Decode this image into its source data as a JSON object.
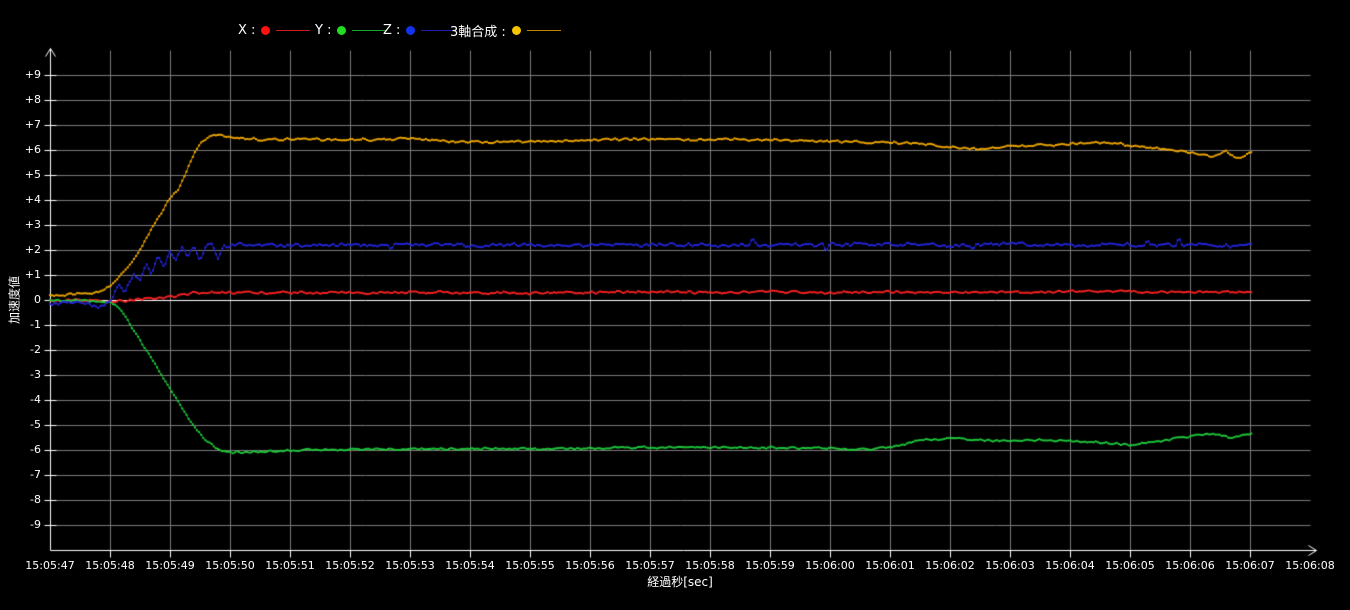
{
  "page": {
    "background": "#000000",
    "text_color": "#ffffff"
  },
  "chart_data": {
    "type": "line",
    "title": "",
    "xlabel": "経過秒[sec]",
    "ylabel": "加速度値",
    "legend_position": "top",
    "grid": {
      "enabled": true,
      "line_color": "#7b7b7b",
      "zero_line_color": "#ffffff",
      "axis_color": "#ffffff"
    },
    "ylim": [
      -10,
      10
    ],
    "x_axis_range_sec": [
      47,
      68
    ],
    "data_t_range_sec": [
      47.0,
      67.05
    ],
    "sample_interval_sec": 0.035,
    "y_ticks": [
      {
        "v": 9,
        "label": "+9"
      },
      {
        "v": 8,
        "label": "+8"
      },
      {
        "v": 7,
        "label": "+7"
      },
      {
        "v": 6,
        "label": "+6"
      },
      {
        "v": 5,
        "label": "+5"
      },
      {
        "v": 4,
        "label": "+4"
      },
      {
        "v": 3,
        "label": "+3"
      },
      {
        "v": 2,
        "label": "+2"
      },
      {
        "v": 1,
        "label": "+1"
      },
      {
        "v": 0,
        "label": "0"
      },
      {
        "v": -1,
        "label": "-1"
      },
      {
        "v": -2,
        "label": "-2"
      },
      {
        "v": -3,
        "label": "-3"
      },
      {
        "v": -4,
        "label": "-4"
      },
      {
        "v": -5,
        "label": "-5"
      },
      {
        "v": -6,
        "label": "-6"
      },
      {
        "v": -7,
        "label": "-7"
      },
      {
        "v": -8,
        "label": "-8"
      },
      {
        "v": -9,
        "label": "-9"
      }
    ],
    "x_ticks": [
      {
        "sec": 47,
        "label": "15:05:47"
      },
      {
        "sec": 48,
        "label": "15:05:48"
      },
      {
        "sec": 49,
        "label": "15:05:49"
      },
      {
        "sec": 50,
        "label": "15:05:50"
      },
      {
        "sec": 51,
        "label": "15:05:51"
      },
      {
        "sec": 52,
        "label": "15:05:52"
      },
      {
        "sec": 53,
        "label": "15:05:53"
      },
      {
        "sec": 54,
        "label": "15:05:54"
      },
      {
        "sec": 55,
        "label": "15:05:55"
      },
      {
        "sec": 56,
        "label": "15:05:56"
      },
      {
        "sec": 57,
        "label": "15:05:57"
      },
      {
        "sec": 58,
        "label": "15:05:58"
      },
      {
        "sec": 59,
        "label": "15:05:59"
      },
      {
        "sec": 60,
        "label": "15:06:00"
      },
      {
        "sec": 61,
        "label": "15:06:01"
      },
      {
        "sec": 62,
        "label": "15:06:02"
      },
      {
        "sec": 63,
        "label": "15:06:03"
      },
      {
        "sec": 64,
        "label": "15:06:04"
      },
      {
        "sec": 65,
        "label": "15:06:05"
      },
      {
        "sec": 66,
        "label": "15:06:06"
      },
      {
        "sec": 67,
        "label": "15:06:07"
      },
      {
        "sec": 68,
        "label": "15:06:08"
      }
    ],
    "series": [
      {
        "name": "X",
        "legend_label": "X :",
        "color": "#ff2222",
        "marker_color": "#ff1111",
        "noise": 0.06,
        "spike_prob": 0,
        "spike_amp": 0,
        "keypoints": [
          [
            47.0,
            -0.05
          ],
          [
            47.5,
            -0.02
          ],
          [
            48.0,
            -0.05
          ],
          [
            48.3,
            -0.02
          ],
          [
            48.6,
            0.05
          ],
          [
            48.9,
            0.1
          ],
          [
            49.2,
            0.22
          ],
          [
            49.5,
            0.3
          ],
          [
            50.0,
            0.28
          ],
          [
            51.0,
            0.3
          ],
          [
            52.0,
            0.28
          ],
          [
            53.0,
            0.3
          ],
          [
            54.0,
            0.3
          ],
          [
            55.0,
            0.28
          ],
          [
            56.0,
            0.3
          ],
          [
            57.0,
            0.32
          ],
          [
            58.0,
            0.3
          ],
          [
            59.0,
            0.33
          ],
          [
            60.0,
            0.3
          ],
          [
            61.0,
            0.32
          ],
          [
            62.0,
            0.3
          ],
          [
            63.0,
            0.3
          ],
          [
            64.0,
            0.33
          ],
          [
            65.0,
            0.35
          ],
          [
            65.7,
            0.3
          ],
          [
            66.3,
            0.33
          ],
          [
            67.05,
            0.3
          ]
        ]
      },
      {
        "name": "Y",
        "legend_label": "Y :",
        "color": "#1ecb3c",
        "marker_color": "#22dd22",
        "noise": 0.05,
        "spike_prob": 0,
        "spike_amp": 0,
        "keypoints": [
          [
            47.0,
            0.0
          ],
          [
            47.6,
            -0.02
          ],
          [
            48.0,
            -0.08
          ],
          [
            48.15,
            -0.3
          ],
          [
            48.3,
            -0.85
          ],
          [
            48.45,
            -1.4
          ],
          [
            48.6,
            -2.0
          ],
          [
            48.8,
            -2.75
          ],
          [
            49.0,
            -3.55
          ],
          [
            49.15,
            -4.15
          ],
          [
            49.3,
            -4.7
          ],
          [
            49.45,
            -5.2
          ],
          [
            49.6,
            -5.6
          ],
          [
            49.75,
            -5.9
          ],
          [
            49.9,
            -6.07
          ],
          [
            50.15,
            -6.1
          ],
          [
            50.6,
            -6.05
          ],
          [
            51.3,
            -6.0
          ],
          [
            52.5,
            -5.97
          ],
          [
            54.0,
            -5.95
          ],
          [
            55.5,
            -5.95
          ],
          [
            57.0,
            -5.9
          ],
          [
            58.5,
            -5.9
          ],
          [
            59.8,
            -5.92
          ],
          [
            60.7,
            -5.98
          ],
          [
            61.1,
            -5.85
          ],
          [
            61.5,
            -5.6
          ],
          [
            62.1,
            -5.55
          ],
          [
            62.7,
            -5.62
          ],
          [
            63.3,
            -5.6
          ],
          [
            63.9,
            -5.62
          ],
          [
            64.5,
            -5.7
          ],
          [
            65.0,
            -5.8
          ],
          [
            65.5,
            -5.65
          ],
          [
            66.0,
            -5.45
          ],
          [
            66.4,
            -5.35
          ],
          [
            66.7,
            -5.5
          ],
          [
            66.9,
            -5.4
          ],
          [
            67.05,
            -5.3
          ]
        ]
      },
      {
        "name": "Z",
        "legend_label": "Z :",
        "color": "#2525e0",
        "marker_color": "#1133ee",
        "noise": 0.09,
        "spike_prob": 0.03,
        "spike_amp": 0.4,
        "keypoints": [
          [
            47.0,
            -0.15
          ],
          [
            47.5,
            -0.1
          ],
          [
            47.9,
            -0.25
          ],
          [
            48.05,
            0.15
          ],
          [
            48.15,
            0.65
          ],
          [
            48.25,
            0.35
          ],
          [
            48.4,
            1.05
          ],
          [
            48.5,
            0.75
          ],
          [
            48.6,
            1.45
          ],
          [
            48.7,
            1.05
          ],
          [
            48.8,
            1.75
          ],
          [
            48.9,
            1.35
          ],
          [
            49.0,
            2.0
          ],
          [
            49.1,
            1.6
          ],
          [
            49.2,
            2.15
          ],
          [
            49.3,
            1.75
          ],
          [
            49.4,
            2.2
          ],
          [
            49.5,
            1.55
          ],
          [
            49.6,
            2.2
          ],
          [
            49.7,
            2.3
          ],
          [
            49.8,
            1.65
          ],
          [
            49.9,
            2.15
          ],
          [
            50.1,
            2.2
          ],
          [
            51.0,
            2.18
          ],
          [
            52.0,
            2.2
          ],
          [
            53.0,
            2.22
          ],
          [
            54.0,
            2.18
          ],
          [
            55.0,
            2.2
          ],
          [
            56.0,
            2.2
          ],
          [
            57.0,
            2.22
          ],
          [
            58.0,
            2.18
          ],
          [
            59.0,
            2.2
          ],
          [
            60.0,
            2.2
          ],
          [
            61.0,
            2.22
          ],
          [
            62.0,
            2.18
          ],
          [
            63.0,
            2.25
          ],
          [
            64.0,
            2.2
          ],
          [
            65.0,
            2.2
          ],
          [
            66.0,
            2.22
          ],
          [
            66.5,
            2.15
          ],
          [
            67.05,
            2.2
          ]
        ]
      },
      {
        "name": "3軸合成",
        "legend_label": "3軸合成 :",
        "color": "#f2a900",
        "marker_color": "#f2c500",
        "noise": 0.06,
        "spike_prob": 0,
        "spike_amp": 0,
        "keypoints": [
          [
            47.0,
            0.18
          ],
          [
            47.4,
            0.22
          ],
          [
            47.8,
            0.28
          ],
          [
            48.0,
            0.55
          ],
          [
            48.15,
            0.95
          ],
          [
            48.3,
            1.35
          ],
          [
            48.45,
            1.8
          ],
          [
            48.55,
            2.2
          ],
          [
            48.7,
            2.9
          ],
          [
            48.85,
            3.45
          ],
          [
            48.95,
            3.95
          ],
          [
            49.05,
            4.25
          ],
          [
            49.15,
            4.45
          ],
          [
            49.25,
            5.0
          ],
          [
            49.35,
            5.55
          ],
          [
            49.45,
            6.05
          ],
          [
            49.55,
            6.4
          ],
          [
            49.65,
            6.55
          ],
          [
            49.8,
            6.6
          ],
          [
            50.0,
            6.5
          ],
          [
            50.5,
            6.42
          ],
          [
            51.2,
            6.45
          ],
          [
            52.0,
            6.4
          ],
          [
            52.8,
            6.45
          ],
          [
            53.6,
            6.35
          ],
          [
            54.4,
            6.3
          ],
          [
            55.2,
            6.35
          ],
          [
            56.0,
            6.4
          ],
          [
            56.8,
            6.45
          ],
          [
            57.6,
            6.4
          ],
          [
            58.4,
            6.42
          ],
          [
            59.2,
            6.38
          ],
          [
            60.0,
            6.35
          ],
          [
            60.8,
            6.3
          ],
          [
            61.5,
            6.25
          ],
          [
            62.0,
            6.1
          ],
          [
            62.5,
            6.05
          ],
          [
            63.0,
            6.15
          ],
          [
            63.7,
            6.2
          ],
          [
            64.3,
            6.3
          ],
          [
            64.8,
            6.25
          ],
          [
            65.3,
            6.1
          ],
          [
            65.8,
            5.95
          ],
          [
            66.1,
            5.85
          ],
          [
            66.4,
            5.7
          ],
          [
            66.6,
            5.95
          ],
          [
            66.8,
            5.65
          ],
          [
            66.95,
            5.85
          ],
          [
            67.05,
            5.9
          ]
        ]
      }
    ]
  }
}
